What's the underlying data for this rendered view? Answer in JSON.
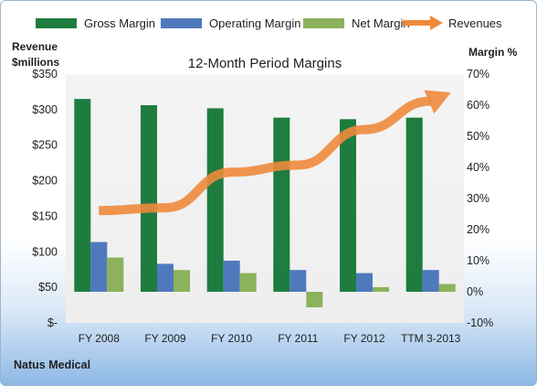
{
  "chart_data": {
    "type": "bar",
    "title": "12-Month Period Margins",
    "categories": [
      "FY 2008",
      "FY 2009",
      "FY 2010",
      "FY 2011",
      "FY 2012",
      "TTM 3-2013"
    ],
    "series": [
      {
        "name": "Gross Margin",
        "axis": "right",
        "values": [
          62,
          60,
          59,
          56,
          55.5,
          56
        ],
        "color": "#1e7d3e"
      },
      {
        "name": "Operating Margin",
        "axis": "right",
        "values": [
          16,
          9,
          10,
          7,
          6,
          7
        ],
        "color": "#4f79bd"
      },
      {
        "name": "Net Margin",
        "axis": "right",
        "values": [
          11,
          7,
          6,
          -5,
          1.5,
          2.5
        ],
        "color": "#8cb25b"
      },
      {
        "name": "Revenues",
        "axis": "left",
        "type": "line",
        "values": [
          158,
          162,
          212,
          222,
          272,
          312
        ],
        "color": "#ee8a3c"
      }
    ],
    "y_left": {
      "label_line1": "Revenue",
      "label_line2": "$millions",
      "range": [
        0,
        350
      ],
      "ticks": [
        0,
        50,
        100,
        150,
        200,
        250,
        300,
        350
      ],
      "tick_labels": [
        "$-",
        "$50",
        "$100",
        "$150",
        "$200",
        "$250",
        "$300",
        "$350"
      ]
    },
    "y_right": {
      "label": "Margin %",
      "range": [
        -10,
        70
      ],
      "ticks": [
        -10,
        0,
        10,
        20,
        30,
        40,
        50,
        60,
        70
      ],
      "tick_labels": [
        "-10%",
        "0%",
        "10%",
        "20%",
        "30%",
        "40%",
        "50%",
        "60%",
        "70%"
      ]
    },
    "grid": false,
    "legend_placement": "top",
    "footer": "Natus Medical",
    "plot_background": "#f2f2f2"
  }
}
